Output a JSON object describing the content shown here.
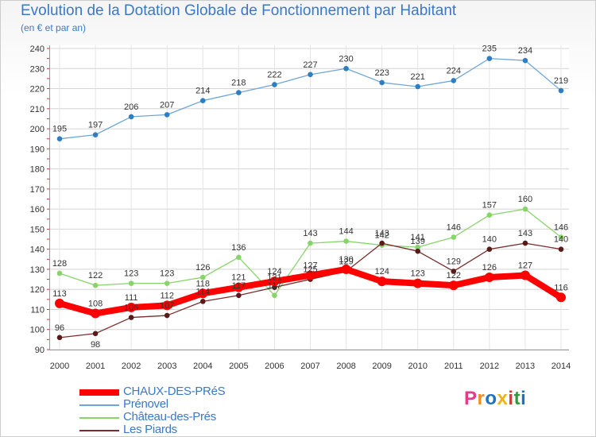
{
  "title": "Evolution de la Dotation Globale de Fonctionnement par Habitant",
  "subtitle": "(en € et par an)",
  "logo": {
    "text": "Proxiti",
    "letters": [
      "P",
      "r",
      "o",
      "x",
      "i",
      "t",
      "i"
    ],
    "colors": [
      "#e63a8a",
      "#f08a2a",
      "#1e73be",
      "#f0b21c",
      "#e6332a",
      "#2e9a3a",
      "#1e73be"
    ]
  },
  "chart_data": {
    "type": "line",
    "x": [
      "2000",
      "2001",
      "2002",
      "2003",
      "2004",
      "2005",
      "2006",
      "2007",
      "2008",
      "2009",
      "2010",
      "2011",
      "2012",
      "2013",
      "2014"
    ],
    "ylim": [
      90,
      240
    ],
    "yticks": [
      90,
      100,
      110,
      120,
      130,
      140,
      150,
      160,
      170,
      180,
      190,
      200,
      210,
      220,
      230,
      240
    ],
    "grid": true,
    "legend": "bottom-left",
    "series": [
      {
        "name": "CHAUX-DES-PRéS",
        "color": "#ff0000",
        "marker": "#ff0000",
        "values": [
          113,
          108,
          111,
          112,
          118,
          121,
          124,
          127,
          130,
          124,
          123,
          122,
          126,
          127,
          116
        ],
        "labels": [
          "113",
          "108",
          "111",
          "112",
          "118",
          "121",
          "124",
          "127",
          "130",
          "124",
          "123",
          "122",
          "126",
          "127",
          "116"
        ]
      },
      {
        "name": "Prénovel",
        "color": "#6ea6d7",
        "marker": "#2f7ec2",
        "values": [
          195,
          197,
          206,
          207,
          214,
          218,
          222,
          227,
          230,
          223,
          221,
          224,
          235,
          234,
          219
        ],
        "labels": [
          "195",
          "197",
          "206",
          "207",
          "214",
          "218",
          "222",
          "227",
          "230",
          "223",
          "221",
          "224",
          "235",
          "234",
          "219"
        ]
      },
      {
        "name": "Château-des-Prés",
        "color": "#88d36a",
        "marker": "#88d36a",
        "values": [
          128,
          122,
          123,
          123,
          126,
          136,
          117,
          143,
          144,
          142,
          141,
          146,
          157,
          160,
          146
        ],
        "labels": [
          "128",
          "122",
          "123",
          "123",
          "126",
          "136",
          "117",
          "143",
          "144",
          "142",
          "141",
          "146",
          "157",
          "160",
          "146"
        ]
      },
      {
        "name": "Les Piards",
        "color": "#7a2d2d",
        "marker": "#5a1a1a",
        "values": [
          96,
          98,
          106,
          107,
          114,
          117,
          121,
          125,
          129,
          143,
          139,
          129,
          140,
          143,
          140
        ],
        "labels": [
          "96",
          "98",
          "106",
          "107",
          "114",
          "117",
          "121",
          "125",
          "129",
          "143",
          "139",
          "129",
          "140",
          "143",
          "140"
        ]
      }
    ]
  }
}
